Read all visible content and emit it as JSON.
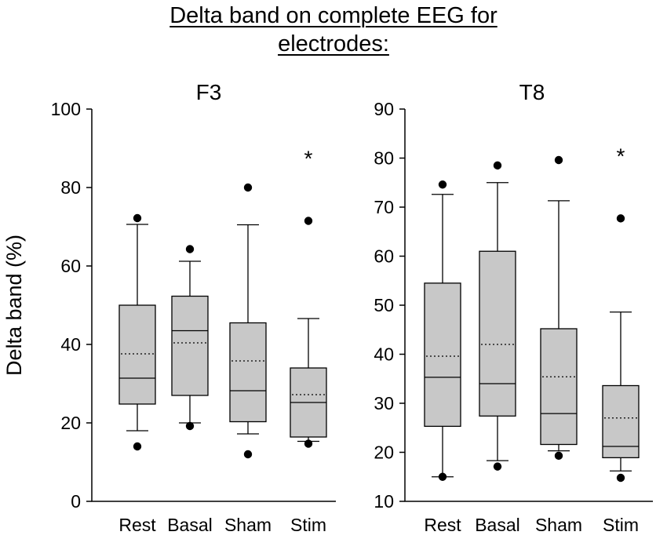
{
  "title": {
    "line1": "Delta band on complete EEG for",
    "line2": "electrodes:"
  },
  "chart_data": [
    {
      "type": "box",
      "title": "F3",
      "ylabel": "Delta band (%)",
      "ylim": [
        0,
        100
      ],
      "yticks": [
        0,
        20,
        40,
        60,
        80,
        100
      ],
      "categories": [
        "Rest",
        "Basal",
        "Sham",
        "Stim"
      ],
      "boxes": [
        {
          "category": "Rest",
          "whisker_low": 18,
          "q1": 24.8,
          "median": 31.4,
          "mean": 37.6,
          "q3": 50,
          "whisker_high": 70.6,
          "outliers": [
            14,
            72.2
          ],
          "annotation": ""
        },
        {
          "category": "Basal",
          "whisker_low": 20,
          "q1": 27,
          "median": 43.5,
          "mean": 40.4,
          "q3": 52.3,
          "whisker_high": 61.2,
          "outliers": [
            19.2,
            64.3
          ],
          "annotation": ""
        },
        {
          "category": "Sham",
          "whisker_low": 17.2,
          "q1": 20.3,
          "median": 28.2,
          "mean": 35.8,
          "q3": 45.5,
          "whisker_high": 70.5,
          "outliers": [
            12,
            80
          ],
          "annotation": ""
        },
        {
          "category": "Stim",
          "whisker_low": 15.3,
          "q1": 16.4,
          "median": 25.2,
          "mean": 27.2,
          "q3": 34,
          "whisker_high": 46.6,
          "outliers": [
            14.7,
            71.5
          ],
          "annotation": "*"
        }
      ]
    },
    {
      "type": "box",
      "title": "T8",
      "ylabel": "",
      "ylim": [
        10,
        90
      ],
      "yticks": [
        10,
        20,
        30,
        40,
        50,
        60,
        70,
        80,
        90
      ],
      "categories": [
        "Rest",
        "Basal",
        "Sham",
        "Stim"
      ],
      "boxes": [
        {
          "category": "Rest",
          "whisker_low": 15,
          "q1": 25.3,
          "median": 35.3,
          "mean": 39.6,
          "q3": 54.5,
          "whisker_high": 72.6,
          "outliers": [
            15,
            74.6
          ],
          "annotation": ""
        },
        {
          "category": "Basal",
          "whisker_low": 18.3,
          "q1": 27.4,
          "median": 34,
          "mean": 42,
          "q3": 61,
          "whisker_high": 75,
          "outliers": [
            17.1,
            78.5
          ],
          "annotation": ""
        },
        {
          "category": "Sham",
          "whisker_low": 20.3,
          "q1": 21.6,
          "median": 27.9,
          "mean": 35.4,
          "q3": 45.2,
          "whisker_high": 71.3,
          "outliers": [
            19.3,
            79.6
          ],
          "annotation": ""
        },
        {
          "category": "Stim",
          "whisker_low": 16.2,
          "q1": 18.9,
          "median": 21.2,
          "mean": 27,
          "q3": 33.6,
          "whisker_high": 48.6,
          "outliers": [
            14.8,
            67.7
          ],
          "annotation": "*"
        }
      ]
    }
  ]
}
